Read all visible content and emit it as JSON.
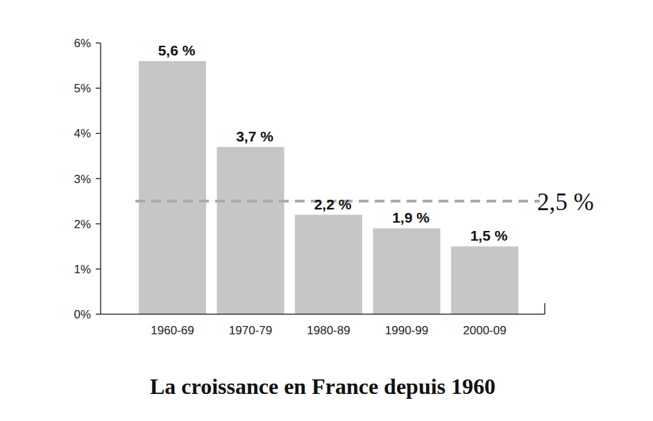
{
  "chart_data": {
    "type": "bar",
    "title": "La croissance en France depuis 1960",
    "categories": [
      "1960-69",
      "1970-79",
      "1980-89",
      "1990-99",
      "2000-09"
    ],
    "values": [
      5.6,
      3.7,
      2.2,
      1.9,
      1.5
    ],
    "value_labels": [
      "5,6 %",
      "3,7 %",
      "2,2 %",
      "1,9 %",
      "1,5 %"
    ],
    "data_labels": true,
    "color": "#c6c6c6",
    "ylim": [
      0,
      6
    ],
    "yticks": [
      {
        "value": 0,
        "label": "0%"
      },
      {
        "value": 1,
        "label": "1%"
      },
      {
        "value": 2,
        "label": "2%"
      },
      {
        "value": 3,
        "label": "3%"
      },
      {
        "value": 4,
        "label": "4%"
      },
      {
        "value": 5,
        "label": "5%"
      },
      {
        "value": 6,
        "label": "6%"
      }
    ],
    "grid": false,
    "annotations": [
      {
        "value": 2.5,
        "label": "2,5 %"
      }
    ]
  }
}
